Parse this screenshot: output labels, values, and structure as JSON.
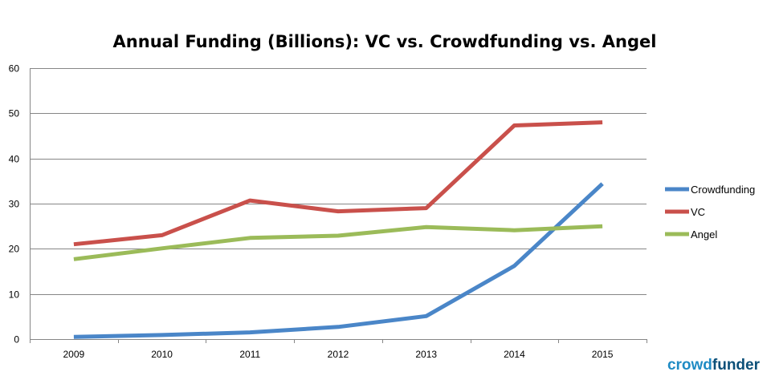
{
  "chart_data": {
    "type": "line",
    "title": "Annual Funding (Billions): VC vs. Crowdfunding vs. Angel",
    "categories": [
      "2009",
      "2010",
      "2011",
      "2012",
      "2013",
      "2014",
      "2015"
    ],
    "ylim": [
      0,
      60
    ],
    "yticks": [
      0,
      10,
      20,
      30,
      40,
      50,
      60
    ],
    "grid": true,
    "legend_position": "right",
    "series": [
      {
        "name": "Crowdfunding",
        "color": "#4a86c8",
        "values": [
          0.5,
          0.9,
          1.5,
          2.7,
          5.1,
          16.2,
          34.4
        ]
      },
      {
        "name": "VC",
        "color": "#c9504b",
        "values": [
          21.0,
          23.0,
          30.7,
          28.3,
          29.0,
          47.3,
          48.0
        ]
      },
      {
        "name": "Angel",
        "color": "#9bbb59",
        "values": [
          17.7,
          20.1,
          22.4,
          22.9,
          24.8,
          24.1,
          25.0
        ]
      }
    ]
  },
  "logo": {
    "part1": "crowd",
    "part2": "funder"
  }
}
